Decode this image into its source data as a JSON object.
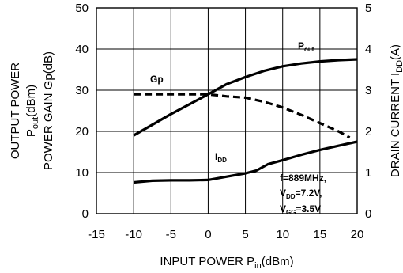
{
  "chart_data": {
    "type": "line",
    "title": "",
    "xlabel": {
      "main": "INPUT POWER P",
      "sub": "in",
      "tail": "(dBm)"
    },
    "ylabel_left_line1": "OUTPUT POWER",
    "ylabel_left_line2": {
      "main": "P",
      "sub": "out",
      "tail": "(dBm)"
    },
    "ylabel_left_line3": "POWER GAIN Gp(dB)",
    "ylabel_right": {
      "main": "DRAIN CURRENT I",
      "sub": "DD",
      "tail": "(A)"
    },
    "xlim": [
      -15,
      20
    ],
    "ylim_left": [
      0,
      50
    ],
    "ylim_right": [
      0,
      5
    ],
    "x_ticks": [
      "-15",
      "-10",
      "-5",
      "0",
      "5",
      "10",
      "15",
      "20"
    ],
    "y_left_ticks": [
      "0",
      "10",
      "20",
      "30",
      "40",
      "50"
    ],
    "y_right_ticks": [
      "0",
      "1",
      "2",
      "3",
      "4",
      "5"
    ],
    "grid": true,
    "series": [
      {
        "name": "Pout",
        "axis": "left",
        "style": "solid",
        "x": [
          -10,
          -7.5,
          -5,
          -2.5,
          0,
          2.5,
          5,
          7.5,
          10,
          12.5,
          15,
          17.5,
          20
        ],
        "y": [
          19,
          21.6,
          24.2,
          26.6,
          29,
          31.5,
          33.2,
          34.7,
          35.8,
          36.5,
          37,
          37.3,
          37.5
        ]
      },
      {
        "name": "Gp",
        "axis": "left",
        "style": "dashed",
        "x": [
          -10,
          -7.5,
          -5,
          -2.5,
          0,
          2.5,
          5,
          7.5,
          10,
          12.5,
          15,
          17.5,
          19
        ],
        "y": [
          29,
          29,
          29,
          29,
          29,
          28.5,
          28.2,
          27.2,
          25.8,
          24,
          22,
          20,
          18.5
        ]
      },
      {
        "name": "IDD",
        "axis": "right",
        "style": "solid",
        "x": [
          -10,
          -7.5,
          -5,
          -2.5,
          0,
          2.5,
          5,
          6.5,
          8,
          10,
          12.5,
          15,
          17.5,
          20
        ],
        "y": [
          0.76,
          0.8,
          0.81,
          0.81,
          0.82,
          0.9,
          0.98,
          1.05,
          1.2,
          1.3,
          1.43,
          1.55,
          1.65,
          1.75
        ]
      }
    ],
    "annotations": {
      "pout": {
        "main": "P",
        "sub": "out"
      },
      "gp": "Gp",
      "idd": {
        "main": "I",
        "sub": "DD"
      },
      "freq": "f=889MHz,",
      "vdd": {
        "main": "V",
        "sub": "DD",
        "tail": "=7.2V,"
      },
      "vgg": {
        "main": "V",
        "sub": "GG",
        "tail": "=3.5V"
      }
    }
  }
}
